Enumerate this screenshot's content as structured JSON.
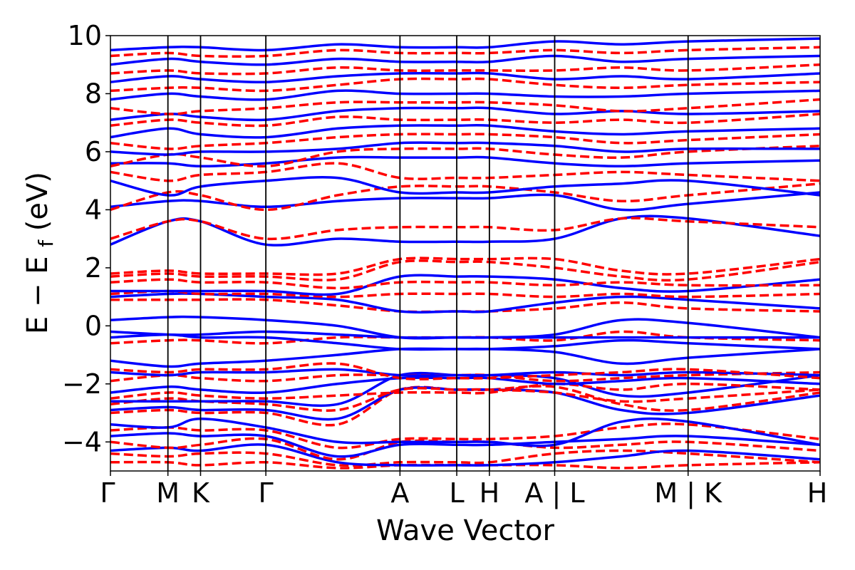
{
  "chart_data": {
    "type": "line",
    "title": "",
    "xlabel": "Wave Vector",
    "ylabel_main": "E − E",
    "ylabel_sub": "f",
    "ylabel_unit": " (eV)",
    "ylim": [
      -5,
      10
    ],
    "yticks": [
      -4,
      -2,
      0,
      2,
      4,
      6,
      8,
      10
    ],
    "ytick_labels": [
      "−4",
      "−2",
      "0",
      "2",
      "4",
      "6",
      "8",
      "10"
    ],
    "xlim": [
      0,
      1
    ],
    "kpath": [
      {
        "label": "Γ",
        "x": 0.0
      },
      {
        "label": "M",
        "x": 0.081
      },
      {
        "label": "K",
        "x": 0.127
      },
      {
        "label": "Γ",
        "x": 0.219
      },
      {
        "label": "A",
        "x": 0.408
      },
      {
        "label": "L",
        "x": 0.488
      },
      {
        "label": "H",
        "x": 0.534
      },
      {
        "label": "A | L",
        "x": 0.626
      },
      {
        "label": "M | K",
        "x": 0.814
      },
      {
        "label": "H",
        "x": 1.0
      }
    ],
    "series_styles": [
      {
        "key": "blue",
        "color": "#0000ff",
        "dash": "solid"
      },
      {
        "key": "red",
        "color": "#ff0000",
        "dash": "dashed"
      }
    ],
    "series": [
      {
        "style": "red",
        "values": [
          -4.7,
          -4.7,
          -4.8,
          -4.7,
          -4.9,
          -4.8,
          -4.8,
          -4.8,
          -4.8,
          -4.9,
          -4.8,
          -4.7
        ]
      },
      {
        "style": "red",
        "values": [
          -4.4,
          -4.5,
          -4.4,
          -4.4,
          -4.8,
          -4.7,
          -4.7,
          -4.7,
          -4.4,
          -4.3,
          -4.4,
          -4.7
        ]
      },
      {
        "style": "blue",
        "values": [
          -4.3,
          -4.2,
          -4.3,
          -4.1,
          -4.7,
          -4.8,
          -4.8,
          -4.8,
          -4.7,
          -4.5,
          -4.3,
          -4.6
        ]
      },
      {
        "style": "red",
        "values": [
          -4.0,
          -4.2,
          -4.1,
          -3.9,
          -4.6,
          -4.0,
          -4.0,
          -4.0,
          -4.2,
          -4.1,
          -4.0,
          -4.3
        ]
      },
      {
        "style": "blue",
        "values": [
          -3.8,
          -3.7,
          -3.8,
          -3.8,
          -4.5,
          -4.1,
          -4.1,
          -4.1,
          -4.0,
          -3.9,
          -3.8,
          -4.1
        ]
      },
      {
        "style": "red",
        "values": [
          -3.6,
          -3.5,
          -3.6,
          -3.6,
          -4.2,
          -3.9,
          -3.9,
          -3.9,
          -3.8,
          -3.5,
          -3.4,
          -3.9
        ]
      },
      {
        "style": "blue",
        "values": [
          -3.4,
          -3.5,
          -3.2,
          -3.5,
          -4.0,
          -4.0,
          -4.0,
          -4.0,
          -4.1,
          -3.3,
          -3.3,
          -4.1
        ]
      },
      {
        "style": "red",
        "values": [
          -3.0,
          -2.9,
          -3.0,
          -3.0,
          -3.4,
          -2.2,
          -2.2,
          -2.2,
          -2.1,
          -2.7,
          -2.9,
          -2.3
        ]
      },
      {
        "style": "blue",
        "values": [
          -2.9,
          -2.8,
          -2.9,
          -2.9,
          -3.2,
          -2.2,
          -2.2,
          -2.2,
          -2.3,
          -2.9,
          -3.0,
          -2.4
        ]
      },
      {
        "style": "red",
        "values": [
          -2.7,
          -2.5,
          -2.6,
          -2.7,
          -2.9,
          -2.2,
          -2.2,
          -2.2,
          -2.3,
          -2.6,
          -2.5,
          -2.2
        ]
      },
      {
        "style": "blue",
        "values": [
          -2.6,
          -2.6,
          -2.6,
          -2.6,
          -2.7,
          -1.7,
          -1.7,
          -1.7,
          -1.8,
          -2.4,
          -2.3,
          -1.7
        ]
      },
      {
        "style": "red",
        "values": [
          -2.5,
          -2.3,
          -2.4,
          -2.5,
          -2.4,
          -2.3,
          -2.3,
          -2.3,
          -2.0,
          -2.2,
          -2.0,
          -2.2
        ]
      },
      {
        "style": "blue",
        "values": [
          -2.3,
          -2.1,
          -2.2,
          -2.3,
          -2.0,
          -1.8,
          -1.8,
          -1.8,
          -2.0,
          -1.9,
          -1.8,
          -2.0
        ]
      },
      {
        "style": "red",
        "values": [
          -1.9,
          -1.7,
          -1.8,
          -1.9,
          -1.7,
          -1.7,
          -1.7,
          -1.7,
          -1.9,
          -1.8,
          -1.7,
          -1.6
        ]
      },
      {
        "style": "blue",
        "values": [
          -1.6,
          -1.7,
          -1.6,
          -1.6,
          -1.5,
          -1.7,
          -1.7,
          -1.7,
          -1.6,
          -1.7,
          -1.6,
          -1.7
        ]
      },
      {
        "style": "red",
        "values": [
          -1.5,
          -1.6,
          -1.5,
          -1.5,
          -1.3,
          -1.8,
          -1.8,
          -1.8,
          -1.7,
          -1.6,
          -1.5,
          -1.8
        ]
      },
      {
        "style": "blue",
        "values": [
          -1.2,
          -1.4,
          -1.3,
          -1.2,
          -1.0,
          -0.8,
          -0.8,
          -0.8,
          -0.9,
          -1.3,
          -1.1,
          -0.8
        ]
      },
      {
        "style": "red",
        "values": [
          -0.6,
          -0.5,
          -0.5,
          -0.6,
          -0.4,
          -0.4,
          -0.4,
          -0.4,
          -0.5,
          -0.2,
          -0.4,
          -0.5
        ]
      },
      {
        "style": "blue",
        "values": [
          -0.4,
          -0.3,
          -0.4,
          -0.4,
          -0.6,
          -0.8,
          -0.8,
          -0.8,
          -0.7,
          -0.5,
          -0.6,
          -0.8
        ]
      },
      {
        "style": "blue",
        "values": [
          -0.2,
          -0.3,
          -0.3,
          -0.2,
          -0.3,
          -0.4,
          -0.4,
          -0.4,
          -0.4,
          -0.4,
          -0.4,
          -0.4
        ]
      },
      {
        "style": "blue",
        "values": [
          0.2,
          0.3,
          0.3,
          0.2,
          0.0,
          -0.4,
          -0.4,
          -0.4,
          -0.3,
          0.2,
          0.1,
          -0.4
        ]
      },
      {
        "style": "red",
        "values": [
          0.9,
          0.9,
          0.9,
          0.9,
          0.7,
          0.5,
          0.5,
          0.5,
          0.6,
          0.8,
          0.6,
          0.5
        ]
      },
      {
        "style": "blue",
        "values": [
          1.0,
          1.1,
          1.1,
          1.0,
          0.9,
          0.5,
          0.5,
          0.5,
          0.8,
          1.0,
          0.9,
          0.6
        ]
      },
      {
        "style": "red",
        "values": [
          1.1,
          1.2,
          1.1,
          1.1,
          1.0,
          1.1,
          1.1,
          1.1,
          1.0,
          1.1,
          1.0,
          1.1
        ]
      },
      {
        "style": "blue",
        "values": [
          1.2,
          1.2,
          1.2,
          1.2,
          1.1,
          1.7,
          1.7,
          1.7,
          1.6,
          1.3,
          1.2,
          1.6
        ]
      },
      {
        "style": "red",
        "values": [
          1.5,
          1.6,
          1.5,
          1.5,
          1.3,
          1.5,
          1.5,
          1.5,
          1.4,
          1.5,
          1.4,
          1.4
        ]
      },
      {
        "style": "red",
        "values": [
          1.7,
          1.8,
          1.7,
          1.7,
          1.6,
          2.2,
          2.2,
          2.2,
          2.0,
          1.7,
          1.6,
          2.2
        ]
      },
      {
        "style": "red",
        "values": [
          1.8,
          1.9,
          1.8,
          1.8,
          1.8,
          2.3,
          2.3,
          2.3,
          2.3,
          1.9,
          1.8,
          2.3
        ]
      },
      {
        "style": "blue",
        "values": [
          2.8,
          3.6,
          3.6,
          2.8,
          3.0,
          2.9,
          2.9,
          2.9,
          3.0,
          3.7,
          3.7,
          3.1
        ]
      },
      {
        "style": "red",
        "values": [
          3.0,
          3.6,
          3.6,
          3.0,
          3.3,
          3.4,
          3.4,
          3.4,
          3.3,
          3.7,
          3.6,
          3.4
        ]
      },
      {
        "style": "blue",
        "values": [
          4.1,
          4.3,
          4.3,
          4.1,
          4.3,
          4.4,
          4.4,
          4.4,
          4.5,
          4.0,
          4.2,
          4.6
        ]
      },
      {
        "style": "red",
        "values": [
          4.0,
          4.6,
          4.5,
          4.0,
          4.5,
          4.8,
          4.8,
          4.8,
          4.6,
          4.3,
          4.5,
          4.9
        ]
      },
      {
        "style": "blue",
        "values": [
          5.0,
          4.5,
          4.8,
          5.0,
          5.1,
          4.6,
          4.6,
          4.6,
          4.8,
          4.9,
          5.0,
          4.5
        ]
      },
      {
        "style": "red",
        "values": [
          5.3,
          5.0,
          5.2,
          5.3,
          5.6,
          5.1,
          5.1,
          5.1,
          5.2,
          5.3,
          5.2,
          5.0
        ]
      },
      {
        "style": "blue",
        "values": [
          5.6,
          5.6,
          5.5,
          5.6,
          5.8,
          5.8,
          5.8,
          5.8,
          5.6,
          5.5,
          5.6,
          5.7
        ]
      },
      {
        "style": "red",
        "values": [
          5.5,
          5.9,
          5.8,
          5.5,
          6.0,
          6.1,
          6.1,
          6.1,
          5.9,
          5.8,
          6.0,
          6.2
        ]
      },
      {
        "style": "blue",
        "values": [
          6.0,
          5.9,
          6.0,
          6.0,
          6.1,
          6.3,
          6.3,
          6.3,
          6.2,
          6.0,
          6.1,
          6.1
        ]
      },
      {
        "style": "red",
        "values": [
          6.3,
          6.1,
          6.2,
          6.3,
          6.5,
          6.6,
          6.6,
          6.6,
          6.5,
          6.3,
          6.4,
          6.6
        ]
      },
      {
        "style": "blue",
        "values": [
          6.5,
          6.8,
          6.6,
          6.5,
          6.8,
          6.9,
          6.9,
          6.9,
          6.7,
          6.6,
          6.7,
          6.8
        ]
      },
      {
        "style": "red",
        "values": [
          6.9,
          7.1,
          7.0,
          6.9,
          7.2,
          7.1,
          7.1,
          7.1,
          7.0,
          7.1,
          7.0,
          7.3
        ]
      },
      {
        "style": "blue",
        "values": [
          7.1,
          7.3,
          7.2,
          7.1,
          7.4,
          7.5,
          7.5,
          7.5,
          7.3,
          7.4,
          7.3,
          7.4
        ]
      },
      {
        "style": "red",
        "values": [
          7.5,
          7.3,
          7.4,
          7.5,
          7.7,
          7.7,
          7.7,
          7.7,
          7.6,
          7.4,
          7.5,
          7.8
        ]
      },
      {
        "style": "blue",
        "values": [
          7.8,
          8.0,
          7.9,
          7.8,
          8.1,
          8.0,
          8.0,
          8.0,
          7.9,
          7.9,
          8.0,
          8.1
        ]
      },
      {
        "style": "red",
        "values": [
          8.1,
          8.2,
          8.2,
          8.1,
          8.3,
          8.5,
          8.5,
          8.5,
          8.3,
          8.2,
          8.3,
          8.4
        ]
      },
      {
        "style": "blue",
        "values": [
          8.4,
          8.6,
          8.5,
          8.4,
          8.6,
          8.7,
          8.7,
          8.7,
          8.5,
          8.6,
          8.5,
          8.7
        ]
      },
      {
        "style": "red",
        "values": [
          8.7,
          8.8,
          8.7,
          8.7,
          8.9,
          8.8,
          8.8,
          8.8,
          8.8,
          8.9,
          8.8,
          9.0
        ]
      },
      {
        "style": "blue",
        "values": [
          9.0,
          9.2,
          9.1,
          9.0,
          9.2,
          9.1,
          9.1,
          9.1,
          9.3,
          9.1,
          9.2,
          9.3
        ]
      },
      {
        "style": "red",
        "values": [
          9.3,
          9.4,
          9.3,
          9.3,
          9.5,
          9.4,
          9.4,
          9.4,
          9.5,
          9.4,
          9.5,
          9.6
        ]
      },
      {
        "style": "blue",
        "values": [
          9.5,
          9.6,
          9.6,
          9.5,
          9.7,
          9.6,
          9.6,
          9.6,
          9.8,
          9.7,
          9.8,
          9.9
        ]
      }
    ],
    "series_x": [
      0.0,
      0.081,
      0.127,
      0.219,
      0.32,
      0.408,
      0.488,
      0.534,
      0.626,
      0.72,
      0.814,
      1.0
    ]
  }
}
